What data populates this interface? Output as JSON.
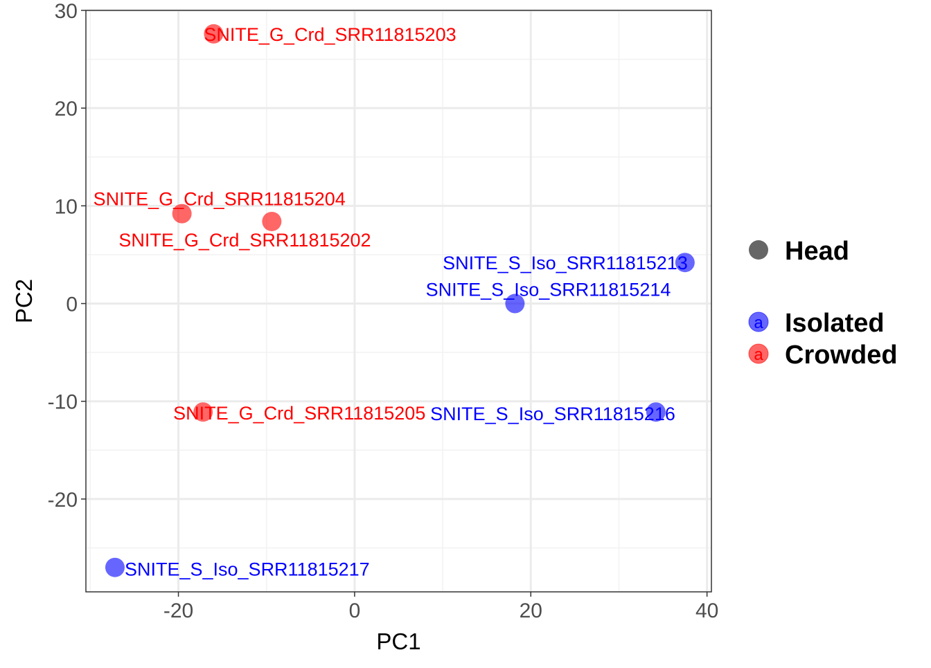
{
  "chart_data": {
    "type": "scatter",
    "xlabel": "PC1",
    "ylabel": "PC2",
    "xlim": [
      -30.5,
      40.5
    ],
    "ylim": [
      -29.5,
      30
    ],
    "x_ticks": [
      -20,
      0,
      20,
      40
    ],
    "x_tick_labels": [
      "-20",
      "0",
      "20",
      "40"
    ],
    "y_ticks": [
      -20,
      -10,
      0,
      10,
      20,
      30
    ],
    "y_tick_labels": [
      "-20",
      "-10",
      "0",
      "10",
      "20",
      "30"
    ],
    "grid": true,
    "legend_position": "right",
    "legend": {
      "shape_entries": [
        {
          "label": "Head",
          "color": "#666666"
        }
      ],
      "color_entries": [
        {
          "label": "Isolated",
          "color": "#0000FF",
          "glyph": "a"
        },
        {
          "label": "Crowded",
          "color": "#FF0000",
          "glyph": "a"
        }
      ]
    },
    "series": [
      {
        "name": "Isolated",
        "color": "#0000FF",
        "points": [
          {
            "x": 37.5,
            "y": 4.2,
            "label": "SNITE_S_Iso_SRR11815213"
          },
          {
            "x": 18.2,
            "y": 0.0,
            "label": "SNITE_S_Iso_SRR11815214"
          },
          {
            "x": 34.2,
            "y": -11.1,
            "label": "SNITE_S_Iso_SRR11815216"
          },
          {
            "x": -27.2,
            "y": -27.0,
            "label": "SNITE_S_Iso_SRR11815217"
          }
        ]
      },
      {
        "name": "Crowded",
        "color": "#FF0000",
        "points": [
          {
            "x": -16.0,
            "y": 27.6,
            "label": "SNITE_G_Crd_SRR11815203"
          },
          {
            "x": -19.6,
            "y": 9.2,
            "label": "SNITE_G_Crd_SRR11815204"
          },
          {
            "x": -9.4,
            "y": 8.4,
            "label": "SNITE_G_Crd_SRR11815202"
          },
          {
            "x": -17.2,
            "y": -11.1,
            "label": "SNITE_G_Crd_SRR11815205"
          }
        ]
      }
    ]
  }
}
